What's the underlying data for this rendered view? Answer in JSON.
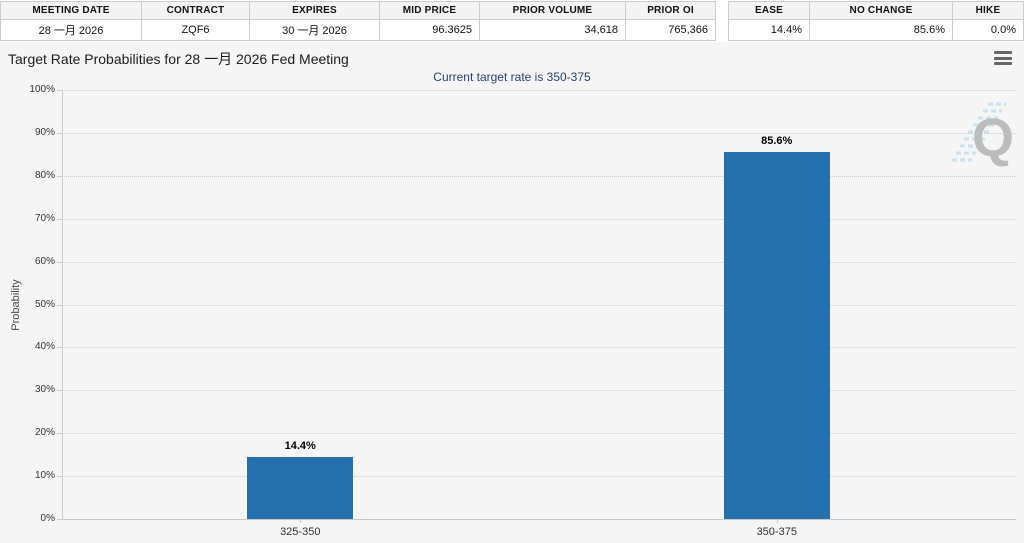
{
  "quote_table": {
    "headers": [
      "MEETING DATE",
      "CONTRACT",
      "EXPIRES",
      "MID PRICE",
      "PRIOR VOLUME",
      "PRIOR OI"
    ],
    "values": [
      "28 一月 2026",
      "ZQF6",
      "30 一月 2026",
      "96.3625",
      "34,618",
      "765,366"
    ]
  },
  "action_table": {
    "headers": [
      "EASE",
      "NO CHANGE",
      "HIKE"
    ],
    "values": [
      "14.4%",
      "85.6%",
      "0.0%"
    ]
  },
  "chart": {
    "title": "Target Rate Probabilities for 28 一月 2026 Fed Meeting",
    "subtitle": "Current target rate is 350-375",
    "menu_icon": "hamburger-menu",
    "watermark_letter": "Q"
  },
  "chart_data": {
    "type": "bar",
    "title": "Target Rate Probabilities for 28 一月 2026 Fed Meeting",
    "subtitle": "Current target rate is 350-375",
    "categories": [
      "325-350",
      "350-375"
    ],
    "values": [
      14.4,
      85.6
    ],
    "data_labels": [
      "14.4%",
      "85.6%"
    ],
    "xlabel": "",
    "ylabel": "Probability",
    "ylim": [
      0,
      100
    ],
    "ytick_step": 10,
    "ytick_suffix": "%",
    "grid": "dotted",
    "legend": "none"
  },
  "colors": {
    "bar": "#2471ae",
    "chart_bg": "#f5f5f5",
    "subtitle_text": "#2b4170",
    "table_header_bg": "#f3f3f3",
    "border": "#cccccc",
    "watermark_stripe": "#bfe0f2",
    "watermark_letter": "#b3b3b3"
  }
}
